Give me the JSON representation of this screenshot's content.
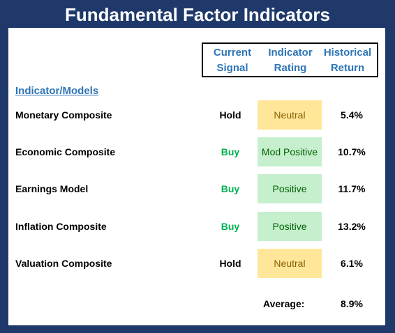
{
  "title": "Fundamental Factor Indicators",
  "headers": {
    "signal": [
      "Current",
      "Signal"
    ],
    "rating": [
      "Indicator",
      "Rating"
    ],
    "return": [
      "Historical",
      "Return"
    ]
  },
  "models_label": "Indicator/Models",
  "rows": [
    {
      "name": "Monetary Composite",
      "signal": "Hold",
      "rating": "Neutral",
      "return": "5.4%"
    },
    {
      "name": "Economic Composite",
      "signal": "Buy",
      "rating": "Mod Positive",
      "return": "10.7%"
    },
    {
      "name": "Earnings Model",
      "signal": "Buy",
      "rating": "Positive",
      "return": "11.7%"
    },
    {
      "name": "Inflation Composite",
      "signal": "Buy",
      "rating": "Positive",
      "return": "13.2%"
    },
    {
      "name": "Valuation Composite",
      "signal": "Hold",
      "rating": "Neutral",
      "return": "6.1%"
    }
  ],
  "average": {
    "label": "Average:",
    "value": "8.9%"
  },
  "colors": {
    "frame": "#1f3a6a",
    "header_text": "#2e75b6",
    "buy_text": "#00b050",
    "hold_text": "#000000",
    "neutral_fill": "#ffe699",
    "neutral_text": "#8a6200",
    "positive_fill": "#c6efce",
    "positive_text": "#006100"
  }
}
